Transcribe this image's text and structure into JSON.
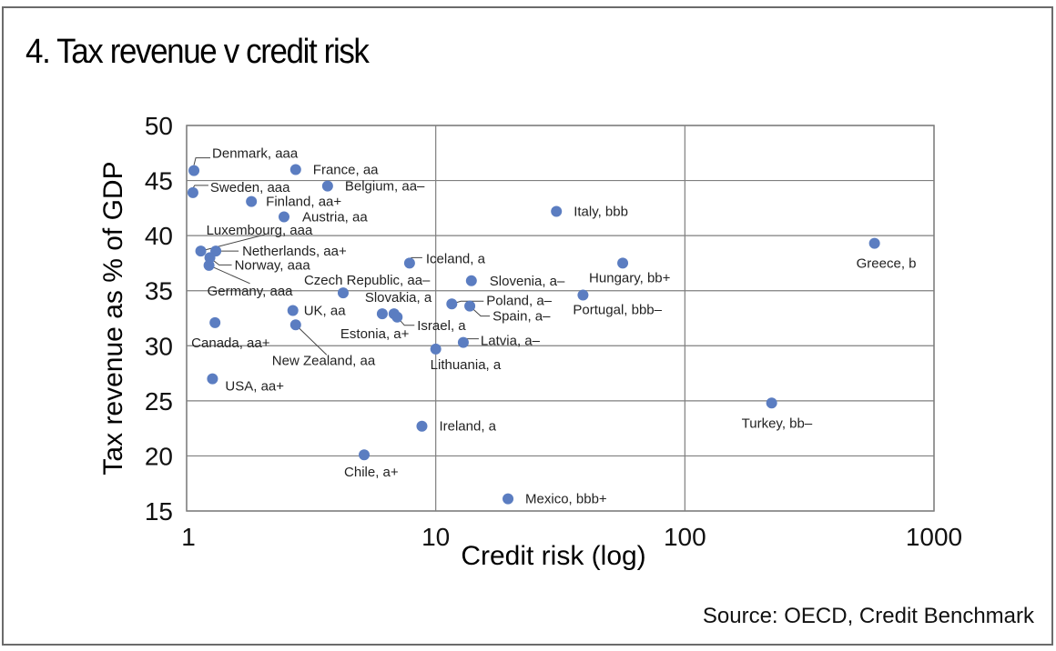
{
  "chart_data": {
    "type": "scatter",
    "title": "4. Tax revenue v credit risk",
    "xlabel": "Credit risk (log)",
    "ylabel": "Tax revenue as % of GDP",
    "xscale": "log",
    "xlim": [
      1,
      1000
    ],
    "ylim": [
      15,
      50
    ],
    "xticks": [
      "1",
      "10",
      "100",
      "1000"
    ],
    "xtick_values": [
      1,
      10,
      100,
      1000
    ],
    "yticks": [
      "15",
      "20",
      "25",
      "30",
      "35",
      "40",
      "45",
      "50"
    ],
    "ytick_values": [
      15,
      20,
      25,
      30,
      35,
      40,
      45,
      50
    ],
    "grid": true,
    "marker_color": "#5b7dc1",
    "source": "Source: OECD, Credit Benchmark",
    "points": [
      {
        "label": "Denmark, aaa",
        "x": 1.07,
        "y": 45.9
      },
      {
        "label": "France, aa",
        "x": 2.74,
        "y": 46.0
      },
      {
        "label": "Sweden, aaa",
        "x": 1.06,
        "y": 43.9
      },
      {
        "label": "Belgium, aa–",
        "x": 3.68,
        "y": 44.5
      },
      {
        "label": "Finland, aa+",
        "x": 1.82,
        "y": 43.1
      },
      {
        "label": "Austria, aa",
        "x": 2.46,
        "y": 41.7
      },
      {
        "label": "Italy, bbb",
        "x": 30.5,
        "y": 42.2
      },
      {
        "label": "Greece, b",
        "x": 577,
        "y": 39.3
      },
      {
        "label": "Luxembourg, aaa",
        "x": 1.14,
        "y": 38.6
      },
      {
        "label": "Netherlands, aa+",
        "x": 1.31,
        "y": 38.6
      },
      {
        "label": "Norway, aaa",
        "x": 1.24,
        "y": 38.0
      },
      {
        "label": "Germany, aaa",
        "x": 1.23,
        "y": 37.3
      },
      {
        "label": "Iceland, a",
        "x": 7.85,
        "y": 37.5
      },
      {
        "label": "Hungary, bb+",
        "x": 56.3,
        "y": 37.5
      },
      {
        "label": "Slovenia, a–",
        "x": 13.9,
        "y": 35.9
      },
      {
        "label": "Czech Republic, aa–",
        "x": 4.25,
        "y": 34.8
      },
      {
        "label": "Portugal, bbb–",
        "x": 39.0,
        "y": 34.6
      },
      {
        "label": "Poland, a–",
        "x": 11.6,
        "y": 33.8
      },
      {
        "label": "Spain, a–",
        "x": 13.7,
        "y": 33.6
      },
      {
        "label": "UK, aa",
        "x": 2.67,
        "y": 33.2
      },
      {
        "label": "Estonia, a+",
        "x": 6.1,
        "y": 32.9
      },
      {
        "label": "Slovakia, a",
        "x": 6.8,
        "y": 32.9
      },
      {
        "label": "Israel, a",
        "x": 7.0,
        "y": 32.6
      },
      {
        "label": "Canada, aa+",
        "x": 1.3,
        "y": 32.1
      },
      {
        "label": "New Zealand, aa",
        "x": 2.74,
        "y": 31.9
      },
      {
        "label": "Latvia, a–",
        "x": 12.9,
        "y": 30.3
      },
      {
        "label": "Lithuania, a",
        "x": 10.0,
        "y": 29.7
      },
      {
        "label": "USA, aa+",
        "x": 1.27,
        "y": 27.0
      },
      {
        "label": "Turkey, bb–",
        "x": 223,
        "y": 24.8
      },
      {
        "label": "Ireland, a",
        "x": 8.8,
        "y": 22.7
      },
      {
        "label": "Chile, a+",
        "x": 5.16,
        "y": 20.1
      },
      {
        "label": "Mexico, bbb+",
        "x": 19.5,
        "y": 16.1
      }
    ]
  }
}
